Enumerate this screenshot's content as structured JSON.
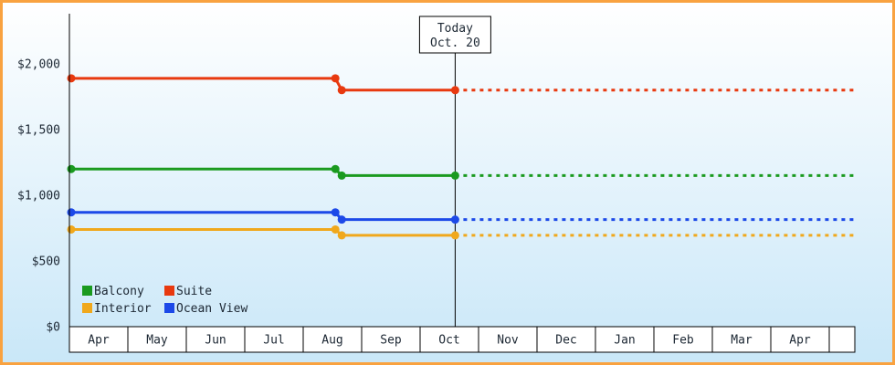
{
  "palette": {
    "frame_border": "#f9a240",
    "background_top": "#ffffff",
    "background_bottom": "#c9e7f8",
    "axis": "#000000",
    "text": "#1c2733",
    "cell_background": "#ffffff",
    "today_line": "#000000"
  },
  "chart_data": {
    "type": "line",
    "months": [
      "Apr",
      "May",
      "Jun",
      "Jul",
      "Aug",
      "Sep",
      "Oct",
      "Nov",
      "Dec",
      "Jan",
      "Feb",
      "Mar",
      "Apr"
    ],
    "y_ticks": [
      {
        "label": "$0",
        "value": 0
      },
      {
        "label": "$500",
        "value": 500
      },
      {
        "label": "$1,000",
        "value": 1000
      },
      {
        "label": "$1,500",
        "value": 1500
      },
      {
        "label": "$2,000",
        "value": 2000
      }
    ],
    "ylim": [
      0,
      2380
    ],
    "today_marker": {
      "line1": "Today",
      "line2": "Oct. 20",
      "month_index": 6.6
    },
    "price_drop_month_index": 4.55,
    "series": [
      {
        "name": "Suite",
        "color": "#e8390f",
        "initial_price": 1890,
        "current_price": 1800
      },
      {
        "name": "Balcony",
        "color": "#1a9a1f",
        "initial_price": 1200,
        "current_price": 1150
      },
      {
        "name": "Ocean View",
        "color": "#1c49e8",
        "initial_price": 870,
        "current_price": 815
      },
      {
        "name": "Interior",
        "color": "#f0a81c",
        "initial_price": 740,
        "current_price": 695
      }
    ],
    "legend_rows": [
      [
        "Balcony",
        "Suite"
      ],
      [
        "Interior",
        "Ocean View"
      ]
    ],
    "forecast_style": "dashed"
  }
}
